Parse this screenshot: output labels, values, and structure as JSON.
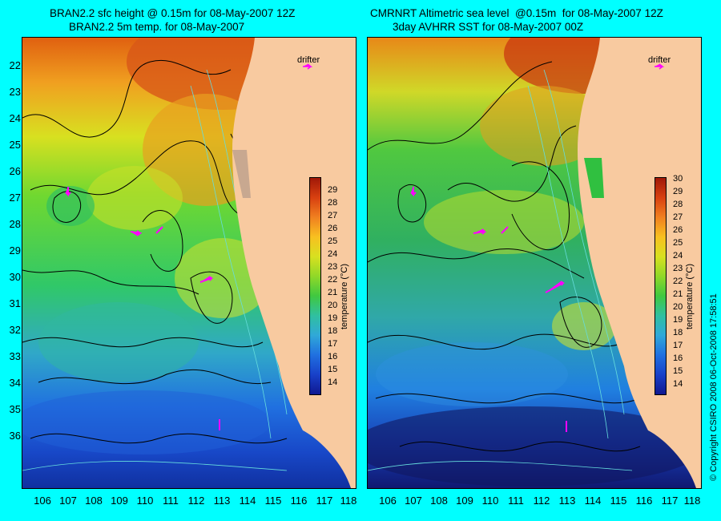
{
  "left_panel": {
    "title_line1": "BRAN2.2 sfc height @ 0.15m for 08-May-2007 12Z",
    "title_line2": "BRAN2.2 5m temp. for 08-May-2007",
    "drifter_label": "drifter",
    "colorbar_title": "temperature (°C)",
    "colorbar_ticks": [
      "29",
      "28",
      "27",
      "26",
      "25",
      "24",
      "23",
      "22",
      "21",
      "20",
      "19",
      "18",
      "17",
      "16",
      "15",
      "14"
    ]
  },
  "right_panel": {
    "title_line1": "CMRNRT Altimetric sea level  @0.15m  for 08-May-2007 12Z",
    "title_line2": "3day AVHRR SST for 08-May-2007 00Z",
    "drifter_label": "drifter",
    "colorbar_title": "temperature (°C)",
    "colorbar_ticks": [
      "30",
      "29",
      "28",
      "27",
      "26",
      "25",
      "24",
      "23",
      "22",
      "21",
      "20",
      "19",
      "18",
      "17",
      "16",
      "15",
      "14"
    ]
  },
  "lat_ticks": [
    "22",
    "23",
    "24",
    "25",
    "26",
    "27",
    "28",
    "29",
    "30",
    "31",
    "32",
    "33",
    "34",
    "35",
    "36"
  ],
  "lon_ticks": [
    "106",
    "107",
    "108",
    "109",
    "110",
    "111",
    "112",
    "113",
    "114",
    "115",
    "116",
    "117",
    "118"
  ],
  "copyright": "© Copyright CSIRO 2008    06-Oct-2008 17:58:51",
  "colors": {
    "background": "#00ffff",
    "land": "#f8caa0",
    "drifter": "#ff00ff",
    "contour": "#000000",
    "bathymetry": "#66dddd"
  }
}
